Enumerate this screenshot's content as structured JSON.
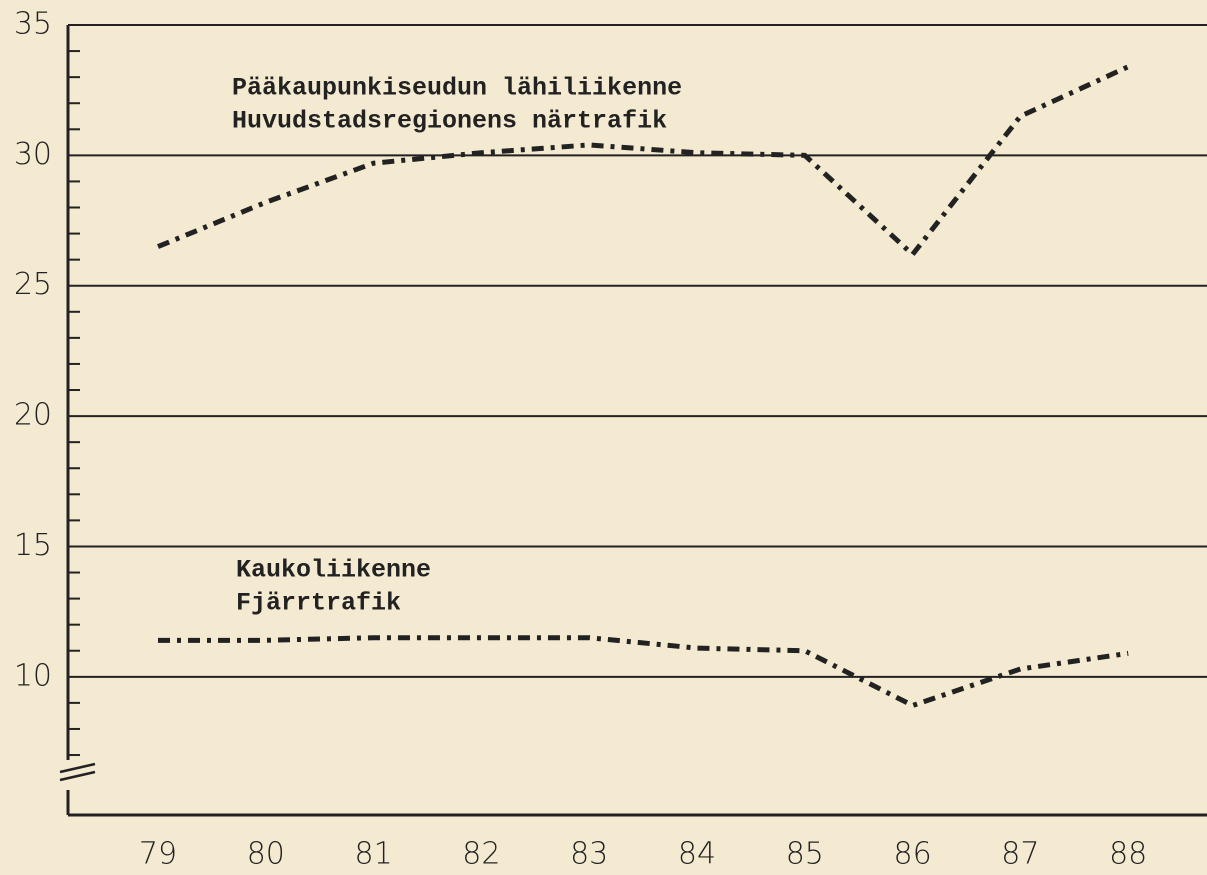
{
  "chart_data": {
    "type": "line",
    "categories": [
      "79",
      "80",
      "81",
      "82",
      "83",
      "84",
      "85",
      "86",
      "87",
      "88"
    ],
    "series": [
      {
        "labels": [
          "Pääkaupunkiseudun lähiliikenne",
          "Huvudstadsregionens närtrafik"
        ],
        "color": "#222222",
        "values": [
          26.5,
          28.2,
          29.7,
          30.1,
          30.4,
          30.1,
          30.0,
          26.2,
          31.5,
          33.4
        ]
      },
      {
        "labels": [
          "Kaukoliikenne",
          "Fjärrtrafik"
        ],
        "color": "#222222",
        "values": [
          11.4,
          11.4,
          11.5,
          11.5,
          11.5,
          11.1,
          11.0,
          8.9,
          10.3,
          10.9
        ]
      }
    ],
    "ylim": [
      4.7,
      35
    ],
    "yticks": [
      10,
      15,
      20,
      25,
      30,
      35
    ],
    "yminor": [
      7,
      8,
      9,
      11,
      12,
      13,
      14,
      16,
      17,
      18,
      19,
      21,
      22,
      23,
      24,
      26,
      27,
      28,
      29,
      31,
      32,
      33,
      34
    ],
    "grid": true
  }
}
